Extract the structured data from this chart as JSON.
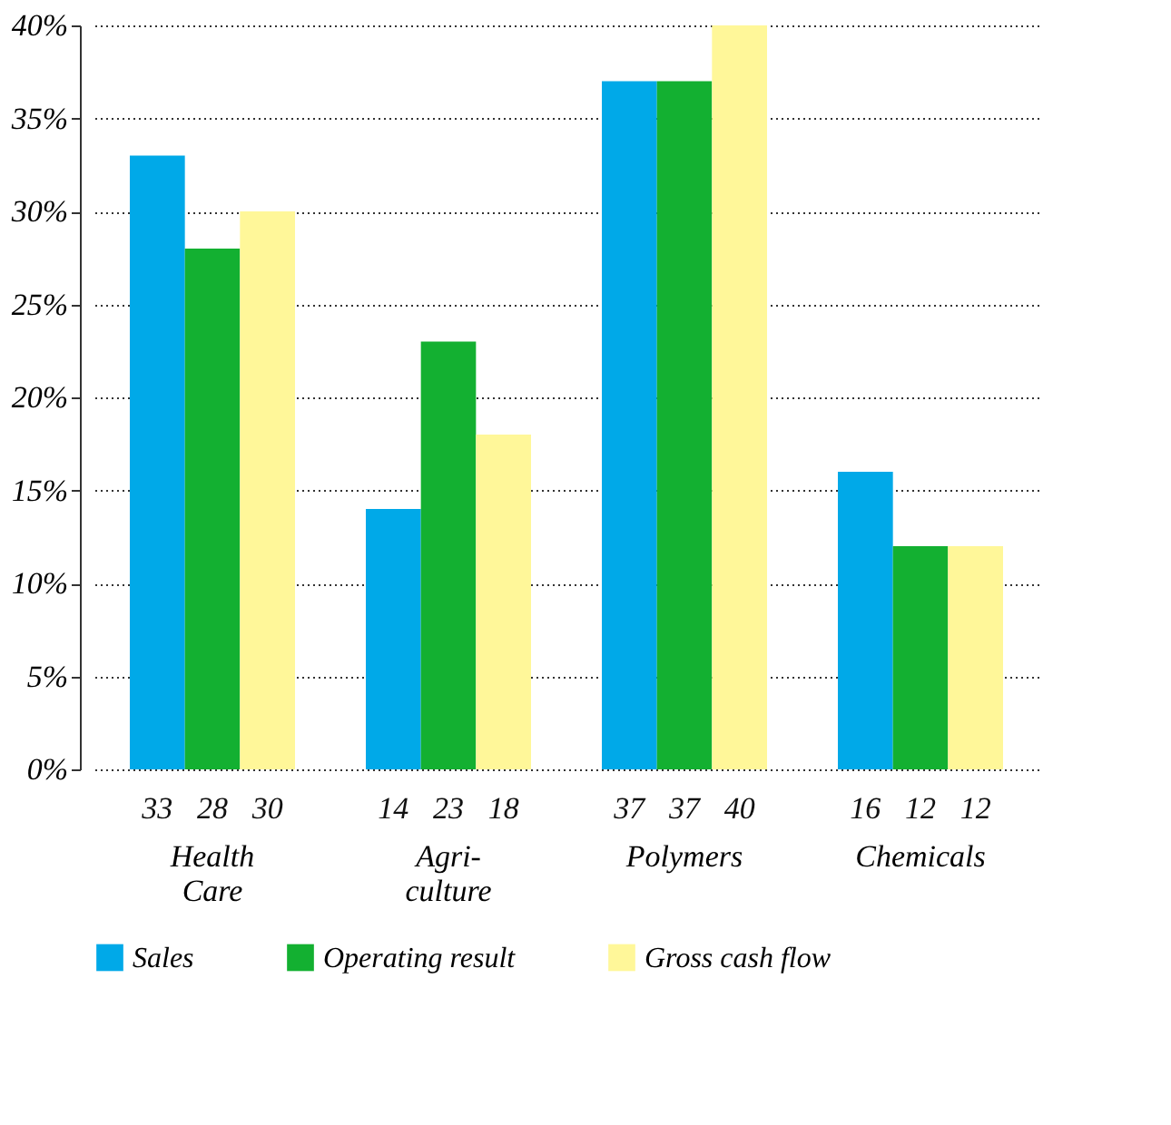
{
  "chart_data": {
    "type": "bar",
    "categories": [
      "Health\nCare",
      "Agri-\nculture",
      "Polymers",
      "Chemicals"
    ],
    "series": [
      {
        "name": "Sales",
        "color": "#00a9e8",
        "values": [
          33,
          14,
          37,
          16
        ]
      },
      {
        "name": "Operating result",
        "color": "#13b031",
        "values": [
          28,
          23,
          37,
          12
        ]
      },
      {
        "name": "Gross cash flow",
        "color": "#fff799",
        "values": [
          30,
          18,
          40,
          12
        ]
      }
    ],
    "ylim": [
      0,
      40
    ],
    "yticks": [
      {
        "value": 0,
        "label": "0%"
      },
      {
        "value": 5,
        "label": "5%"
      },
      {
        "value": 10,
        "label": "10%"
      },
      {
        "value": 15,
        "label": "15%"
      },
      {
        "value": 20,
        "label": "20%"
      },
      {
        "value": 25,
        "label": "25%"
      },
      {
        "value": 30,
        "label": "30%"
      },
      {
        "value": 35,
        "label": "35%"
      },
      {
        "value": 40,
        "label": "40%"
      }
    ],
    "grid": "y",
    "legend": "bottom",
    "data_labels": true
  }
}
